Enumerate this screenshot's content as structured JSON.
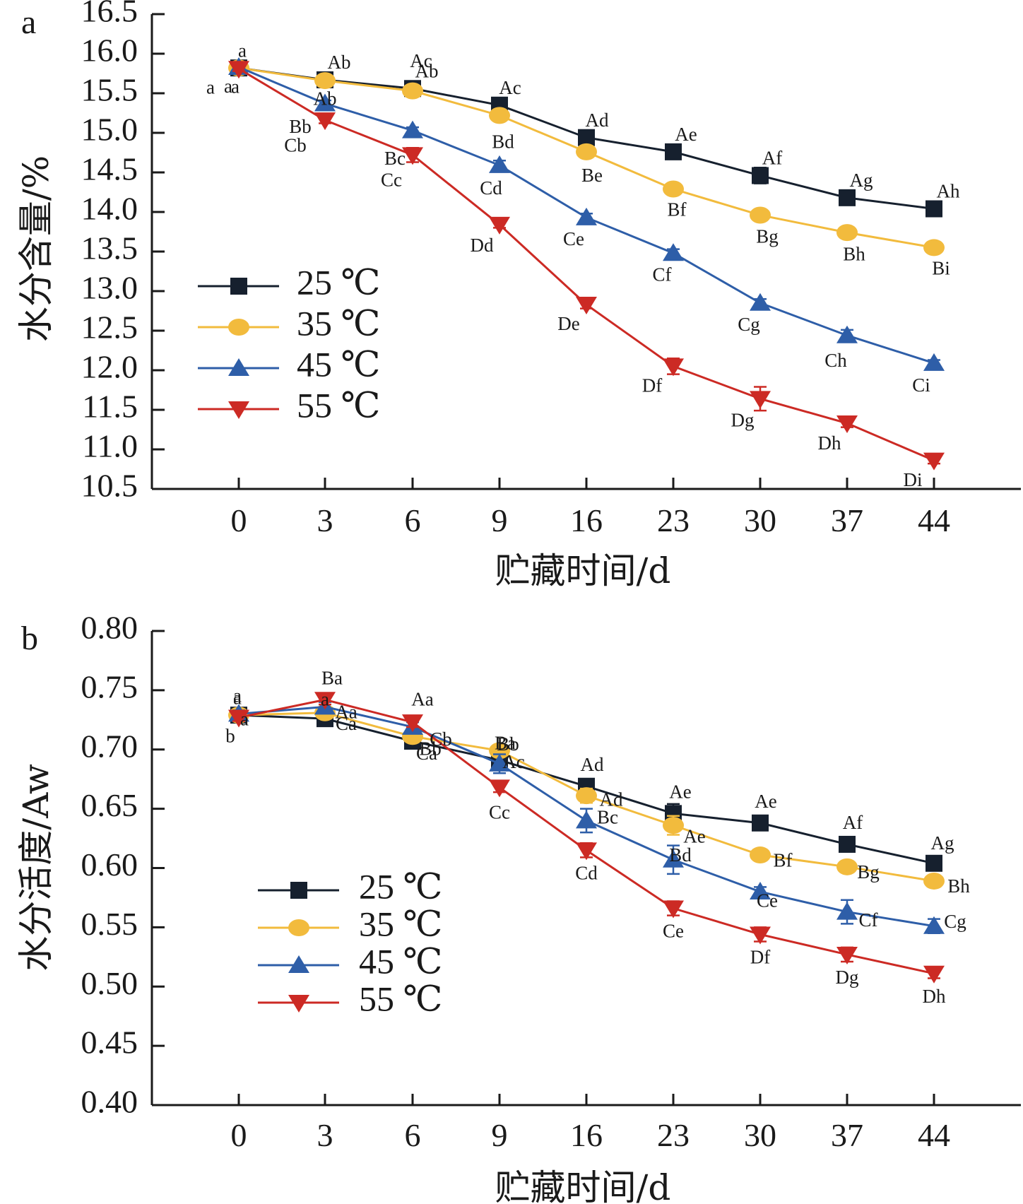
{
  "colors": {
    "s25": "#16202e",
    "s35": "#f2bb3d",
    "s45": "#2e5ea8",
    "s55": "#cc2a24",
    "axis": "#1a1a1a"
  },
  "chart_data": [
    {
      "panel": "a",
      "type": "line",
      "categories": [
        "0",
        "3",
        "6",
        "9",
        "16",
        "23",
        "30",
        "37",
        "44"
      ],
      "xlabel": "贮藏时间/d",
      "ylabel": "水分含量/%",
      "ylim": [
        10.5,
        16.5
      ],
      "ytick_labels": [
        "10.5",
        "11.0",
        "11.5",
        "12.0",
        "12.5",
        "13.0",
        "13.5",
        "14.0",
        "14.5",
        "15.0",
        "15.5",
        "16.0",
        "16.5"
      ],
      "legend_position": "lower-left",
      "series": [
        {
          "name": "25 ℃",
          "marker": "square",
          "values": [
            15.82,
            15.67,
            15.56,
            15.35,
            14.94,
            14.76,
            14.46,
            14.18,
            14.04
          ],
          "errors": [
            0.03,
            0.03,
            0.04,
            0.04,
            0.05,
            0.04,
            0.1,
            0.04,
            0.03
          ],
          "labels": [
            "a",
            "Ab",
            "Ab",
            "Ac",
            "Ad",
            "Ae",
            "Af",
            "Ag",
            "Ah"
          ]
        },
        {
          "name": "35 ℃",
          "marker": "circle",
          "values": [
            15.82,
            15.66,
            15.53,
            15.22,
            14.76,
            14.29,
            13.96,
            13.74,
            13.55
          ],
          "errors": [
            0.03,
            0.03,
            0.04,
            0.04,
            0.07,
            0.04,
            0.05,
            0.04,
            0.04
          ],
          "labels": [
            "a",
            "Ab",
            "Ac",
            "Bd",
            "Be",
            "Bf",
            "Bg",
            "Bh",
            "Bi"
          ]
        },
        {
          "name": "45 ℃",
          "marker": "triangle-up",
          "values": [
            15.83,
            15.37,
            15.03,
            14.59,
            13.93,
            13.48,
            12.85,
            12.44,
            12.09
          ],
          "errors": [
            0.03,
            0.04,
            0.04,
            0.06,
            0.05,
            0.05,
            0.05,
            0.07,
            0.04
          ],
          "labels": [
            "a",
            "Bb",
            "Bc",
            "Cd",
            "Ce",
            "Cf",
            "Cg",
            "Ch",
            "Ci"
          ]
        },
        {
          "name": "55 ℃",
          "marker": "triangle-down",
          "values": [
            15.81,
            15.16,
            14.72,
            13.84,
            12.83,
            12.05,
            11.64,
            11.33,
            10.86
          ],
          "errors": [
            0.03,
            0.04,
            0.09,
            0.04,
            0.05,
            0.1,
            0.15,
            0.05,
            0.04
          ],
          "labels": [
            "a",
            "Cb",
            "Cc",
            "Dd",
            "De",
            "Df",
            "Dg",
            "Dh",
            "Di"
          ]
        }
      ]
    },
    {
      "panel": "b",
      "type": "line",
      "categories": [
        "0",
        "3",
        "6",
        "9",
        "16",
        "23",
        "30",
        "37",
        "44"
      ],
      "xlabel": "贮藏时间/d",
      "ylabel": "水分活度/Aw",
      "ylim": [
        0.4,
        0.8
      ],
      "ytick_labels": [
        "0.40",
        "0.45",
        "0.50",
        "0.55",
        "0.60",
        "0.65",
        "0.70",
        "0.75",
        "0.80"
      ],
      "legend_position": "lower-left",
      "series": [
        {
          "name": "25 ℃",
          "marker": "square",
          "values": [
            0.729,
            0.726,
            0.707,
            0.691,
            0.669,
            0.646,
            0.638,
            0.62,
            0.604
          ],
          "errors": [
            0.003,
            0.003,
            0.004,
            0.004,
            0.006,
            0.008,
            0.004,
            0.004,
            0.004
          ],
          "labels": [
            "b",
            "a",
            "Ca",
            "Bb",
            "Ad",
            "Ae",
            "Ae",
            "Af",
            "Ag"
          ]
        },
        {
          "name": "35 ℃",
          "marker": "circle",
          "values": [
            0.729,
            0.731,
            0.711,
            0.699,
            0.661,
            0.636,
            0.611,
            0.601,
            0.589
          ],
          "errors": [
            0.003,
            0.004,
            0.004,
            0.004,
            0.006,
            0.008,
            0.004,
            0.004,
            0.005
          ],
          "labels": [
            "a",
            "Ca",
            "Bb",
            "Ba",
            "Ad",
            "Ae",
            "Bf",
            "Bg",
            "Bh"
          ]
        },
        {
          "name": "45 ℃",
          "marker": "triangle-up",
          "values": [
            0.73,
            0.736,
            0.719,
            0.688,
            0.64,
            0.607,
            0.58,
            0.563,
            0.551
          ],
          "errors": [
            0.003,
            0.004,
            0.004,
            0.008,
            0.01,
            0.012,
            0.004,
            0.01,
            0.006
          ],
          "labels": [
            "a",
            "Aa",
            "Cb",
            "Ac",
            "Bc",
            "Bd",
            "Ce",
            "Cf",
            "Cg"
          ]
        },
        {
          "name": "55 ℃",
          "marker": "triangle-down",
          "values": [
            0.727,
            0.742,
            0.723,
            0.668,
            0.615,
            0.566,
            0.544,
            0.527,
            0.511
          ],
          "errors": [
            0.003,
            0.004,
            0.004,
            0.004,
            0.006,
            0.006,
            0.006,
            0.006,
            0.004
          ],
          "labels": [
            "a",
            "Ba",
            "Aa",
            "Cc",
            "Cd",
            "Ce",
            "Df",
            "Dg",
            "Dh"
          ]
        }
      ]
    }
  ]
}
